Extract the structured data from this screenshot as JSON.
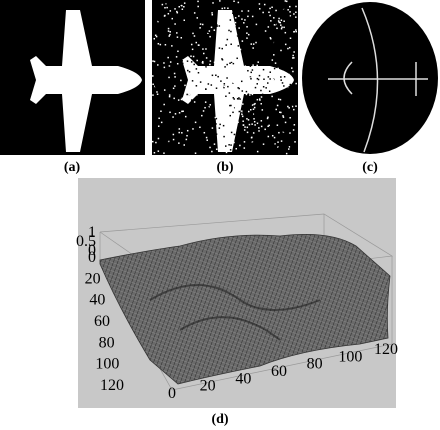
{
  "figure": {
    "panels": [
      {
        "label": "(a)"
      },
      {
        "label": "(b)"
      },
      {
        "label": "(c)"
      },
      {
        "label": "(d)",
        "z_ticks": [
          1,
          0.5,
          0
        ],
        "y_ticks": [
          0,
          20,
          40,
          60,
          80,
          100,
          120
        ],
        "x_ticks": [
          0,
          20,
          40,
          60,
          80,
          100,
          120
        ]
      }
    ]
  }
}
